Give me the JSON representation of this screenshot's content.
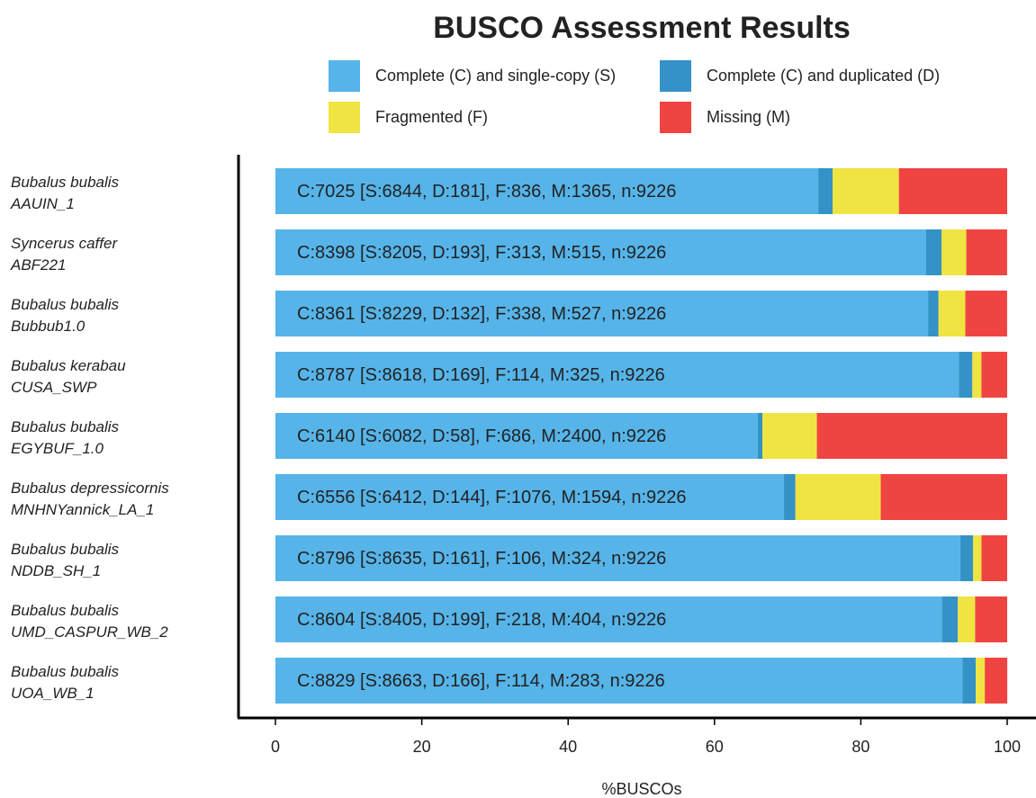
{
  "chart_data": {
    "type": "stacked_barh",
    "title": "BUSCO Assessment Results",
    "xlabel": "%BUSCOs",
    "categories": [
      [
        "Bubalus bubalis",
        "AAUIN_1"
      ],
      [
        "Syncerus caffer",
        "ABF221"
      ],
      [
        "Bubalus bubalis",
        "Bubbub1.0"
      ],
      [
        "Bubalus kerabau",
        "CUSA_SWP"
      ],
      [
        "Bubalus bubalis",
        "EGYBUF_1.0"
      ],
      [
        "Bubalus depressicornis",
        "MNHNYannick_LA_1"
      ],
      [
        "Bubalus bubalis",
        "NDDB_SH_1"
      ],
      [
        "Bubalus bubalis",
        "UMD_CASPUR_WB_2"
      ],
      [
        "Bubalus bubalis",
        "UOA_WB_1"
      ]
    ],
    "series": [
      {
        "name": "Complete (C) and single-copy (S)",
        "color": "#56B4E9",
        "values": [
          74.18,
          88.93,
          89.19,
          93.41,
          65.92,
          69.5,
          93.59,
          91.1,
          93.9
        ]
      },
      {
        "name": "Complete (C) and duplicated (D)",
        "color": "#3492C7",
        "values": [
          1.96,
          2.09,
          1.43,
          1.83,
          0.63,
          1.56,
          1.75,
          2.16,
          1.8
        ]
      },
      {
        "name": "Fragmented (F)",
        "color": "#F0E442",
        "values": [
          9.06,
          3.39,
          3.66,
          1.24,
          7.44,
          11.66,
          1.15,
          2.36,
          1.24
        ]
      },
      {
        "name": "Missing (M)",
        "color": "#F04442",
        "values": [
          14.8,
          5.58,
          5.71,
          3.52,
          26.01,
          17.28,
          3.51,
          4.38,
          3.07
        ]
      }
    ],
    "bar_labels": [
      "C:7025 [S:6844, D:181], F:836, M:1365, n:9226",
      "C:8398 [S:8205, D:193], F:313, M:515, n:9226",
      "C:8361 [S:8229, D:132], F:338, M:527, n:9226",
      "C:8787 [S:8618, D:169], F:114, M:325, n:9226",
      "C:6140 [S:6082, D:58], F:686, M:2400, n:9226",
      "C:6556 [S:6412, D:144], F:1076, M:1594, n:9226",
      "C:8796 [S:8635, D:161], F:106, M:324, n:9226",
      "C:8604 [S:8405, D:199], F:218, M:404, n:9226",
      "C:8829 [S:8663, D:166], F:114, M:283, n:9226"
    ],
    "xlim": [
      0,
      100
    ],
    "xticks": [
      0,
      20,
      40,
      60,
      80,
      100
    ],
    "grid": false
  }
}
